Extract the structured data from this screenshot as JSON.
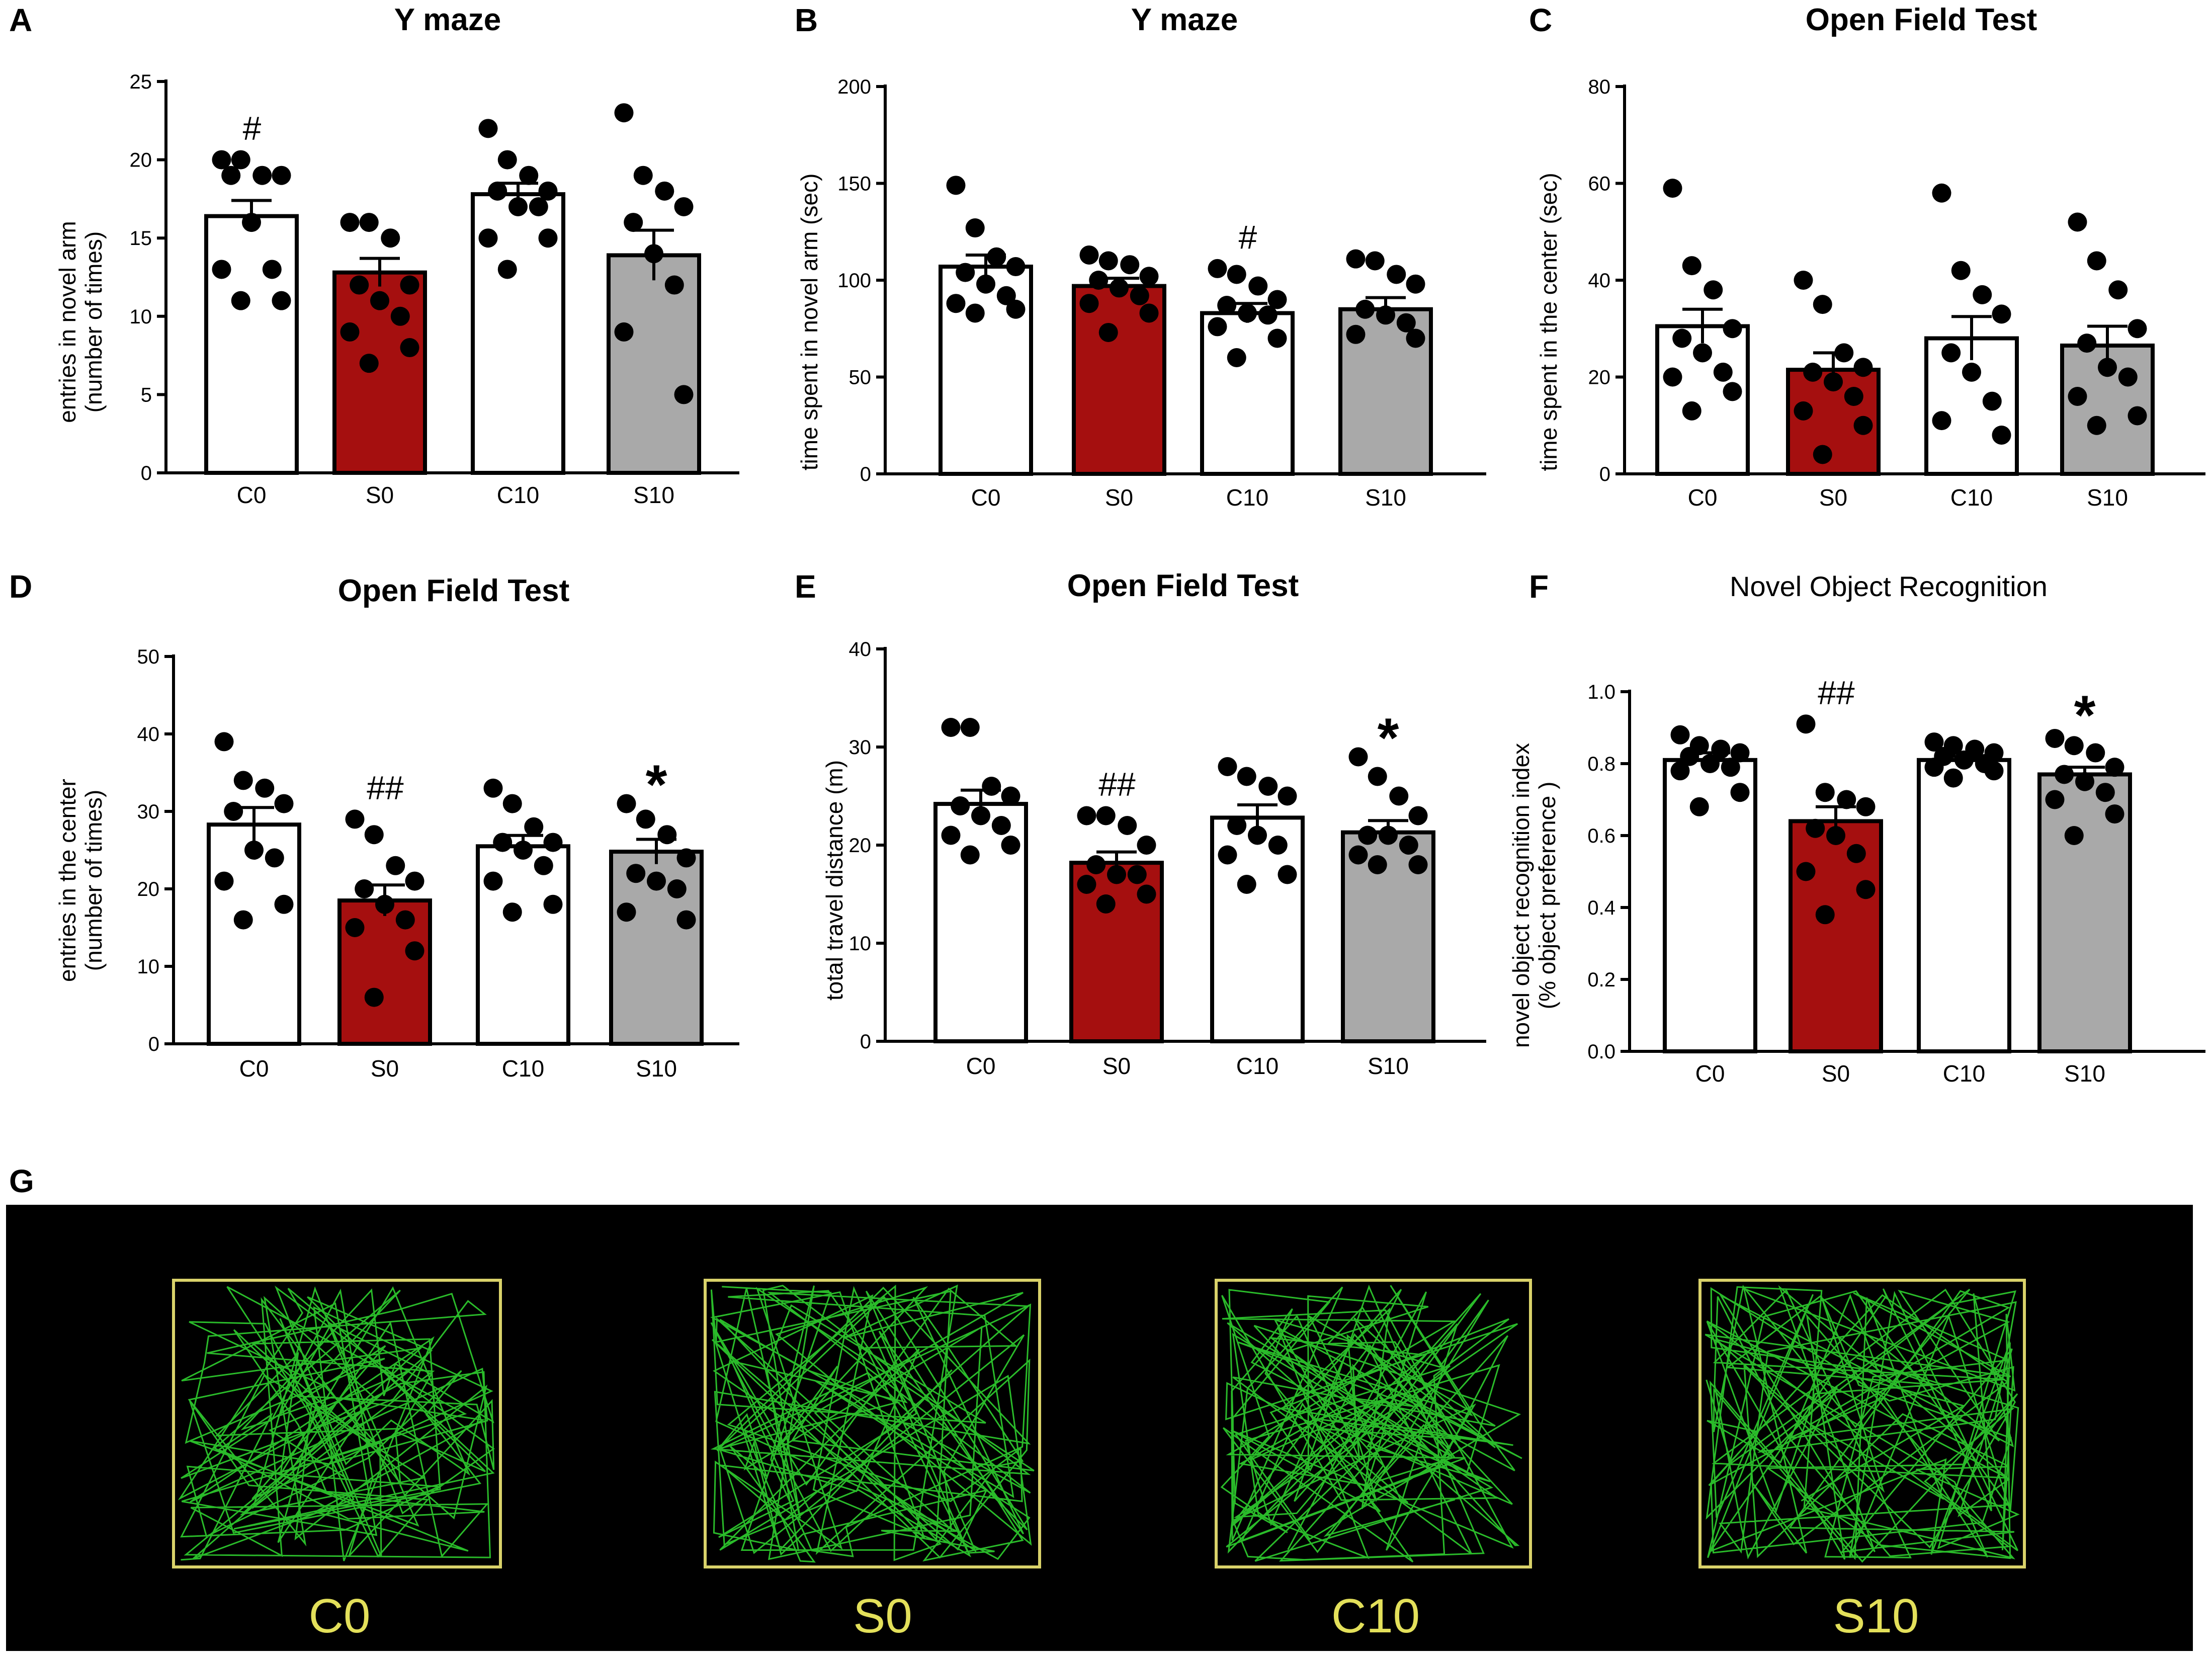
{
  "panel_g": {
    "letter": "G",
    "labels": [
      "C0",
      "S0",
      "C10",
      "S10"
    ],
    "colors": {
      "background": "#000000",
      "box": "#d9d26a",
      "track": "#2fcf2f",
      "label": "#e3e05a"
    }
  },
  "colors": {
    "white": "#ffffff",
    "red": "#a50f0f",
    "gray": "#a9a9a9"
  },
  "chart_data": [
    {
      "id": "A",
      "letter": "A",
      "type": "bar",
      "title": "Y maze",
      "title_style": "bold",
      "ylabel_lines": [
        "entries in novel arm",
        "(number of times)"
      ],
      "categories": [
        "C0",
        "S0",
        "C10",
        "S10"
      ],
      "bar_colors": [
        "#ffffff",
        "#a50f0f",
        "#ffffff",
        "#a9a9a9"
      ],
      "ylim": [
        0,
        25
      ],
      "yticks": [
        0,
        5,
        10,
        15,
        20,
        25
      ],
      "values": [
        16.4,
        12.8,
        17.8,
        13.9
      ],
      "sem": [
        1.0,
        0.9,
        0.7,
        1.6
      ],
      "points": [
        [
          20,
          20,
          19,
          19,
          19,
          16,
          13,
          13,
          11,
          11
        ],
        [
          16,
          16,
          15,
          12,
          12,
          11,
          10,
          9,
          8,
          7
        ],
        [
          22,
          20,
          19,
          18,
          18,
          17,
          17,
          15,
          15,
          13
        ],
        [
          23,
          19,
          18,
          17,
          16,
          14,
          12,
          9,
          5
        ]
      ],
      "annotations": [
        "#",
        "",
        "",
        ""
      ]
    },
    {
      "id": "B",
      "letter": "B",
      "type": "bar",
      "title": "Y maze",
      "title_style": "bold",
      "ylabel_lines": [
        "time spent in novel arm (sec)"
      ],
      "categories": [
        "C0",
        "S0",
        "C10",
        "S10"
      ],
      "bar_colors": [
        "#ffffff",
        "#a50f0f",
        "#ffffff",
        "#a9a9a9"
      ],
      "ylim": [
        0,
        200
      ],
      "yticks": [
        0,
        50,
        100,
        150,
        200
      ],
      "values": [
        107,
        97,
        83,
        85
      ],
      "sem": [
        6,
        4,
        5,
        6
      ],
      "points": [
        [
          149,
          127,
          112,
          107,
          104,
          98,
          92,
          88,
          85,
          83
        ],
        [
          113,
          110,
          108,
          102,
          100,
          96,
          92,
          88,
          83,
          73
        ],
        [
          106,
          103,
          97,
          90,
          87,
          83,
          82,
          76,
          70,
          60
        ],
        [
          111,
          110,
          103,
          98,
          85,
          82,
          78,
          72,
          70
        ]
      ],
      "annotations": [
        "",
        "",
        "#",
        ""
      ]
    },
    {
      "id": "C",
      "letter": "C",
      "type": "bar",
      "title": "Open Field Test",
      "title_style": "bold",
      "ylabel_lines": [
        "time spent in the center (sec)"
      ],
      "categories": [
        "C0",
        "S0",
        "C10",
        "S10"
      ],
      "bar_colors": [
        "#ffffff",
        "#a50f0f",
        "#ffffff",
        "#a9a9a9"
      ],
      "ylim": [
        0,
        80
      ],
      "yticks": [
        0,
        20,
        40,
        60,
        80
      ],
      "values": [
        30.5,
        21.5,
        28,
        26.5
      ],
      "sem": [
        3.5,
        3.5,
        4.5,
        4
      ],
      "points": [
        [
          59,
          43,
          38,
          30,
          28,
          25,
          21,
          20,
          17,
          13
        ],
        [
          40,
          35,
          25,
          22,
          21,
          19,
          16,
          13,
          10,
          4
        ],
        [
          58,
          42,
          37,
          33,
          25,
          21,
          15,
          11,
          8
        ],
        [
          52,
          44,
          38,
          30,
          27,
          22,
          20,
          16,
          12,
          10
        ]
      ],
      "annotations": [
        "",
        "",
        "",
        ""
      ]
    },
    {
      "id": "D",
      "letter": "D",
      "type": "bar",
      "title": "Open Field Test",
      "title_style": "bold",
      "ylabel_lines": [
        "entries in the center",
        "(number of times)"
      ],
      "categories": [
        "C0",
        "S0",
        "C10",
        "S10"
      ],
      "bar_colors": [
        "#ffffff",
        "#a50f0f",
        "#ffffff",
        "#a9a9a9"
      ],
      "ylim": [
        0,
        50
      ],
      "yticks": [
        0,
        10,
        20,
        30,
        40,
        50
      ],
      "values": [
        28.3,
        18.5,
        25.5,
        24.8
      ],
      "sem": [
        2.2,
        2.0,
        1.4,
        1.6
      ],
      "points": [
        [
          39,
          34,
          33,
          31,
          30,
          25,
          24,
          21,
          18,
          16
        ],
        [
          29,
          27,
          23,
          21,
          20,
          18,
          16,
          15,
          12,
          6
        ],
        [
          33,
          31,
          28,
          26,
          26,
          25,
          23,
          21,
          18,
          17
        ],
        [
          31,
          29,
          27,
          24,
          22,
          21,
          20,
          17,
          16
        ]
      ],
      "annotations": [
        "",
        "##",
        "",
        "*"
      ]
    },
    {
      "id": "E",
      "letter": "E",
      "type": "bar",
      "title": "Open Field Test",
      "title_style": "bold",
      "ylabel_lines": [
        "total travel distance (m)"
      ],
      "categories": [
        "C0",
        "S0",
        "C10",
        "S10"
      ],
      "bar_colors": [
        "#ffffff",
        "#a50f0f",
        "#ffffff",
        "#a9a9a9"
      ],
      "ylim": [
        0,
        40
      ],
      "yticks": [
        0,
        10,
        20,
        30,
        40
      ],
      "values": [
        24.2,
        18.2,
        22.8,
        21.3
      ],
      "sem": [
        1.4,
        1.1,
        1.3,
        1.2
      ],
      "points": [
        [
          32,
          32,
          26,
          25,
          24,
          23,
          22,
          21,
          20,
          19
        ],
        [
          23,
          23,
          22,
          20,
          18,
          17,
          17,
          16,
          15,
          14
        ],
        [
          28,
          27,
          26,
          25,
          22,
          21,
          20,
          19,
          17,
          16
        ],
        [
          29,
          27,
          25,
          23,
          21,
          21,
          20,
          19,
          18,
          18
        ]
      ],
      "annotations": [
        "",
        "##",
        "",
        "*"
      ]
    },
    {
      "id": "F",
      "letter": "F",
      "type": "bar",
      "title": "Novel Object Recognition",
      "title_style": "light",
      "ylabel_lines": [
        "novel object recognition index",
        "(% object preference )"
      ],
      "categories": [
        "C0",
        "S0",
        "C10",
        "S10"
      ],
      "bar_colors": [
        "#ffffff",
        "#a50f0f",
        "#ffffff",
        "#a9a9a9"
      ],
      "ylim": [
        0.0,
        1.0
      ],
      "yticks": [
        0.0,
        0.2,
        0.4,
        0.6,
        0.8,
        1.0
      ],
      "tick_format": "fixed1",
      "values": [
        0.81,
        0.64,
        0.81,
        0.77
      ],
      "sem": [
        0.02,
        0.04,
        0.01,
        0.02
      ],
      "points": [
        [
          0.88,
          0.85,
          0.84,
          0.83,
          0.82,
          0.8,
          0.79,
          0.78,
          0.72,
          0.68
        ],
        [
          0.91,
          0.72,
          0.7,
          0.68,
          0.62,
          0.6,
          0.55,
          0.5,
          0.45,
          0.38
        ],
        [
          0.86,
          0.85,
          0.84,
          0.83,
          0.82,
          0.81,
          0.8,
          0.79,
          0.78,
          0.76
        ],
        [
          0.87,
          0.85,
          0.83,
          0.79,
          0.77,
          0.75,
          0.72,
          0.7,
          0.66,
          0.6
        ]
      ],
      "annotations": [
        "",
        "##",
        "",
        "*"
      ]
    }
  ]
}
